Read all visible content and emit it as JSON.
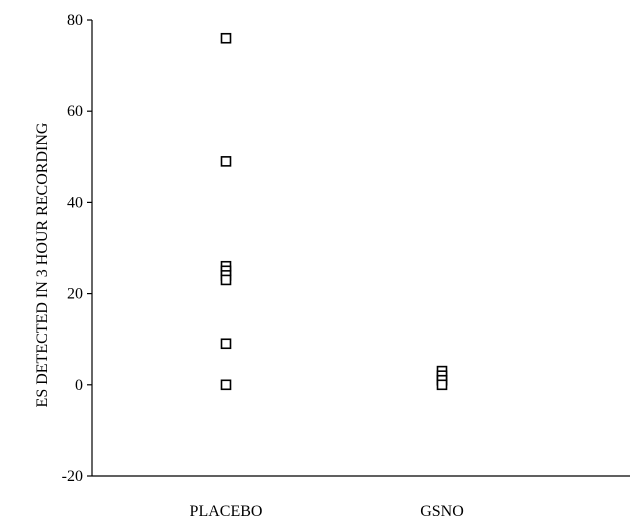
{
  "chart_data": {
    "type": "scatter",
    "categories": [
      "PLACEBO",
      "GSNO"
    ],
    "ylabel": "ES DETECTED IN 3 HOUR RECORDING",
    "xlabel": "",
    "ylim": [
      -20,
      80
    ],
    "yticks": [
      -20,
      0,
      20,
      40,
      60,
      80
    ],
    "grid": false,
    "marker": "open-square",
    "series": [
      {
        "category": "PLACEBO",
        "values": [
          76,
          49,
          26,
          25,
          24,
          23,
          9,
          0
        ]
      },
      {
        "category": "GSNO",
        "values": [
          3,
          2,
          1,
          1,
          0
        ]
      }
    ]
  }
}
